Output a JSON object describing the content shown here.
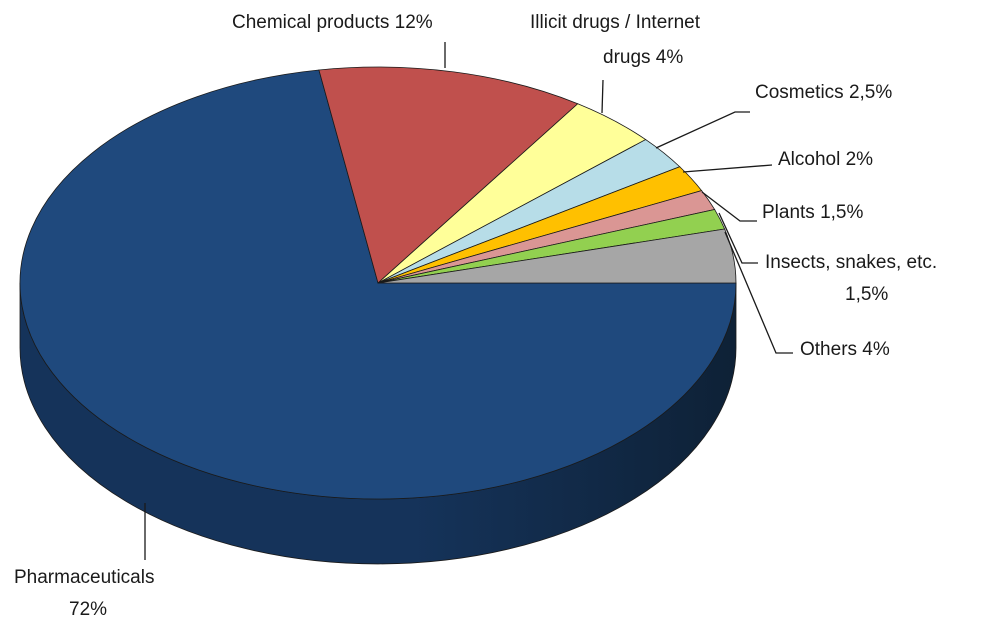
{
  "chart_data": {
    "type": "pie",
    "style": "3d",
    "title": "",
    "unit": "%",
    "slices": [
      {
        "category": "Pharmaceuticals",
        "value": 72,
        "label": [
          "Pharmaceuticals",
          "72%"
        ],
        "color": "#1f497d",
        "side_color": "#15335a"
      },
      {
        "category": "Chemical products",
        "value": 12,
        "label": [
          "Chemical products 12%"
        ],
        "color": "#c0504d",
        "side_color": "#8c3a38"
      },
      {
        "category": "Illicit drugs / Internet drugs",
        "value": 4,
        "label": [
          "Illicit drugs / Internet",
          "drugs 4%"
        ],
        "color": "#ffff99",
        "side_color": "#c8c878"
      },
      {
        "category": "Cosmetics",
        "value": 2.5,
        "label": [
          "Cosmetics 2,5%"
        ],
        "color": "#b7dde8",
        "side_color": "#8aaab4"
      },
      {
        "category": "Alcohol",
        "value": 2,
        "label": [
          "Alcohol 2%"
        ],
        "color": "#ffc000",
        "side_color": "#c09000"
      },
      {
        "category": "Plants",
        "value": 1.5,
        "label": [
          "Plants 1,5%"
        ],
        "color": "#da9694",
        "side_color": "#a87270"
      },
      {
        "category": "Insects, snakes, etc.",
        "value": 1.5,
        "label": [
          "Insects, snakes, etc.",
          "1,5%"
        ],
        "color": "#92d050",
        "side_color": "#6c9c3a"
      },
      {
        "category": "Others",
        "value": 4,
        "label": [
          "Others 4%"
        ],
        "color": "#a6a6a6",
        "side_color": "#7c7c7c"
      }
    ]
  }
}
